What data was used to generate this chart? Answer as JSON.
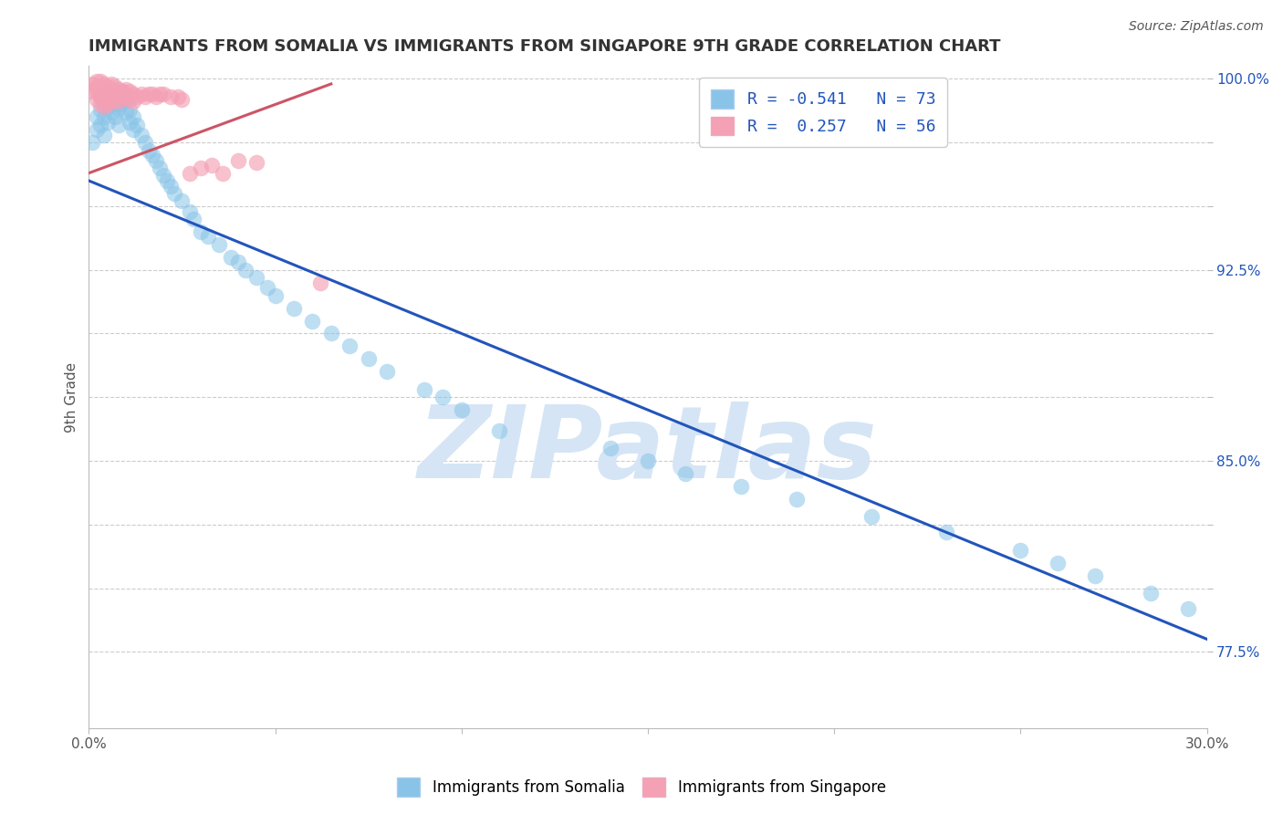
{
  "title": "IMMIGRANTS FROM SOMALIA VS IMMIGRANTS FROM SINGAPORE 9TH GRADE CORRELATION CHART",
  "source": "Source: ZipAtlas.com",
  "ylabel": "9th Grade",
  "xlim": [
    0.0,
    0.3
  ],
  "ylim": [
    0.745,
    1.005
  ],
  "xticks": [
    0.0,
    0.05,
    0.1,
    0.15,
    0.2,
    0.25,
    0.3
  ],
  "xticklabels": [
    "0.0%",
    "",
    "",
    "",
    "",
    "",
    "30.0%"
  ],
  "yticks": [
    0.775,
    0.8,
    0.825,
    0.85,
    0.875,
    0.9,
    0.925,
    0.95,
    0.975,
    1.0
  ],
  "yticklabels": [
    "77.5%",
    "",
    "",
    "85.0%",
    "",
    "",
    "92.5%",
    "",
    "",
    "100.0%"
  ],
  "somalia_R": -0.541,
  "somalia_N": 73,
  "singapore_R": 0.257,
  "singapore_N": 56,
  "somalia_color": "#89C4E8",
  "singapore_color": "#F4A0B5",
  "somalia_line_color": "#2255BB",
  "singapore_line_color": "#CC5566",
  "watermark": "ZIPatlas",
  "watermark_color": "#D5E5F5",
  "background_color": "#FFFFFF",
  "grid_color": "#CCCCCC",
  "legend_somalia_label": "R = -0.541   N = 73",
  "legend_singapore_label": "R =  0.257   N = 56",
  "somalia_x": [
    0.001,
    0.002,
    0.002,
    0.003,
    0.003,
    0.003,
    0.004,
    0.004,
    0.004,
    0.005,
    0.005,
    0.005,
    0.006,
    0.006,
    0.007,
    0.007,
    0.007,
    0.008,
    0.008,
    0.008,
    0.009,
    0.009,
    0.01,
    0.01,
    0.011,
    0.011,
    0.012,
    0.012,
    0.013,
    0.014,
    0.015,
    0.016,
    0.017,
    0.018,
    0.019,
    0.02,
    0.021,
    0.022,
    0.023,
    0.025,
    0.027,
    0.028,
    0.03,
    0.032,
    0.035,
    0.038,
    0.04,
    0.042,
    0.045,
    0.048,
    0.05,
    0.055,
    0.06,
    0.065,
    0.07,
    0.075,
    0.08,
    0.09,
    0.095,
    0.1,
    0.11,
    0.14,
    0.15,
    0.16,
    0.175,
    0.19,
    0.21,
    0.23,
    0.25,
    0.26,
    0.27,
    0.285,
    0.295
  ],
  "somalia_y": [
    0.975,
    0.985,
    0.98,
    0.993,
    0.988,
    0.982,
    0.991,
    0.985,
    0.978,
    0.995,
    0.989,
    0.983,
    0.992,
    0.987,
    0.994,
    0.99,
    0.985,
    0.993,
    0.988,
    0.982,
    0.995,
    0.99,
    0.992,
    0.987,
    0.988,
    0.983,
    0.985,
    0.98,
    0.982,
    0.978,
    0.975,
    0.972,
    0.97,
    0.968,
    0.965,
    0.962,
    0.96,
    0.958,
    0.955,
    0.952,
    0.948,
    0.945,
    0.94,
    0.938,
    0.935,
    0.93,
    0.928,
    0.925,
    0.922,
    0.918,
    0.915,
    0.91,
    0.905,
    0.9,
    0.895,
    0.89,
    0.885,
    0.878,
    0.875,
    0.87,
    0.862,
    0.855,
    0.85,
    0.845,
    0.84,
    0.835,
    0.828,
    0.822,
    0.815,
    0.81,
    0.805,
    0.798,
    0.792
  ],
  "singapore_x": [
    0.001,
    0.001,
    0.002,
    0.002,
    0.002,
    0.002,
    0.003,
    0.003,
    0.003,
    0.003,
    0.003,
    0.004,
    0.004,
    0.004,
    0.004,
    0.004,
    0.005,
    0.005,
    0.005,
    0.005,
    0.006,
    0.006,
    0.006,
    0.006,
    0.007,
    0.007,
    0.007,
    0.008,
    0.008,
    0.008,
    0.009,
    0.009,
    0.01,
    0.01,
    0.011,
    0.011,
    0.012,
    0.012,
    0.013,
    0.014,
    0.015,
    0.016,
    0.017,
    0.018,
    0.019,
    0.02,
    0.022,
    0.024,
    0.025,
    0.027,
    0.03,
    0.033,
    0.036,
    0.04,
    0.045,
    0.062
  ],
  "singapore_y": [
    0.998,
    0.995,
    0.999,
    0.997,
    0.995,
    0.992,
    0.999,
    0.997,
    0.995,
    0.993,
    0.99,
    0.998,
    0.996,
    0.994,
    0.992,
    0.989,
    0.997,
    0.995,
    0.993,
    0.99,
    0.998,
    0.996,
    0.994,
    0.991,
    0.997,
    0.995,
    0.992,
    0.996,
    0.994,
    0.991,
    0.995,
    0.993,
    0.996,
    0.993,
    0.995,
    0.992,
    0.994,
    0.991,
    0.993,
    0.994,
    0.993,
    0.994,
    0.994,
    0.993,
    0.994,
    0.994,
    0.993,
    0.993,
    0.992,
    0.963,
    0.965,
    0.966,
    0.963,
    0.968,
    0.967,
    0.92
  ],
  "somalia_trend_x": [
    0.0,
    0.3
  ],
  "somalia_trend_y": [
    0.96,
    0.78
  ],
  "singapore_trend_x": [
    0.0,
    0.065
  ],
  "singapore_trend_y": [
    0.963,
    0.998
  ]
}
